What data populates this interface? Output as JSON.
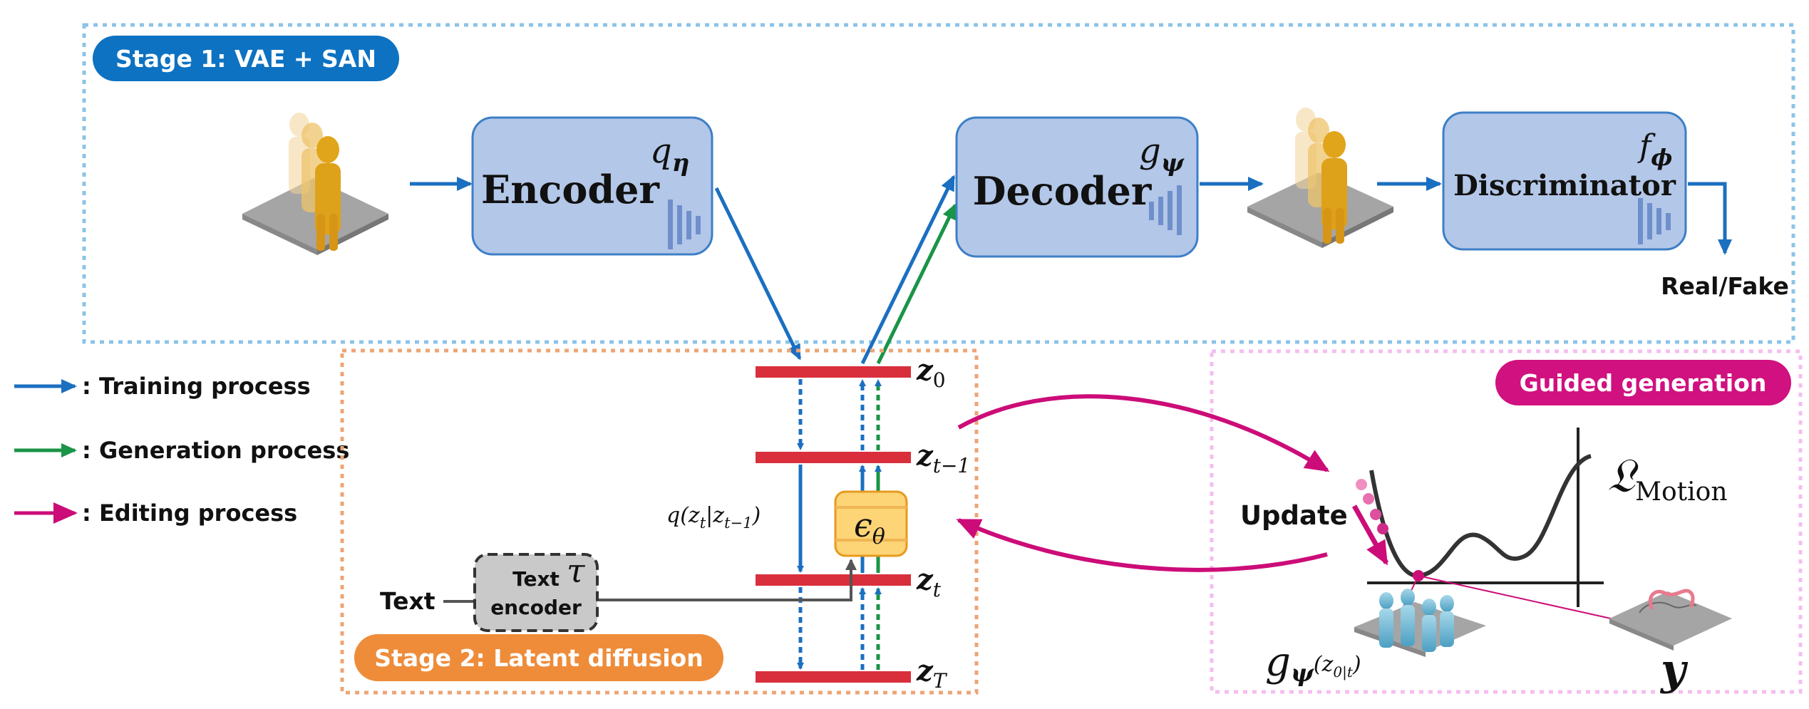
{
  "stage1": {
    "label": "Stage 1: VAE + SAN",
    "encoder": {
      "label": "Encoder",
      "symbol": "q",
      "subscript": "η"
    },
    "decoder": {
      "label": "Decoder",
      "symbol": "g",
      "subscript": "ψ"
    },
    "discriminator": {
      "label": "Discriminator",
      "symbol": "f",
      "subscript": "ϕ"
    },
    "output_label": "Real/Fake"
  },
  "legend": {
    "training": ": Training process",
    "generation": ": Generation process",
    "editing": ": Editing process"
  },
  "stage2": {
    "label": "Stage 2: Latent diffusion",
    "z0": "z",
    "z0_sub": "0",
    "zt1": "z",
    "zt1_sub": "t−1",
    "zt": "z",
    "zt_sub": "t",
    "zT": "z",
    "zT_sub": "T",
    "q_label": "q(z",
    "q_t": "t",
    "q_mid": "|z",
    "q_t1": "t−1",
    "q_end": ")",
    "eps": "ϵ",
    "eps_sub": "θ",
    "text_input": "Text",
    "text_encoder_line1": "Text",
    "text_encoder_line2": "encoder",
    "tau": "τ"
  },
  "guided": {
    "label": "Guided generation",
    "update": "Update",
    "loss_symbol": "𝔏",
    "loss_sub": "Motion",
    "g_symbol": "g",
    "g_sub": "ψ",
    "g_arg": "(z",
    "g_arg_sub": "0|t",
    "g_arg_end": ")",
    "y_symbol": "y"
  },
  "colors": {
    "training": "#1b6fc0",
    "generation": "#1a9447",
    "editing": "#cc0c78",
    "stage1_badge": "#0d72c2",
    "stage2_badge": "#ee8c3a",
    "guided_badge": "#d0117f",
    "box_fill": "#b3c7e8",
    "box_stroke": "#3d7fc6",
    "latent_bar": "#d92f3c",
    "eps_fill": "#fdd476",
    "eps_stroke": "#e79a1d",
    "encoder_box_fill": "#c9c9c9"
  }
}
